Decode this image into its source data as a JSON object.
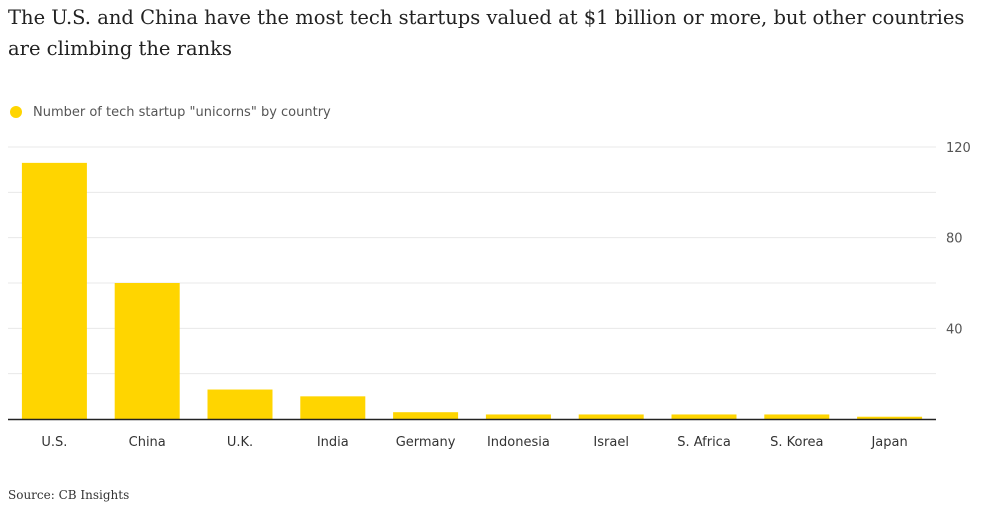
{
  "colors": {
    "bar": "#FFD500",
    "grid": "#e8e8e8",
    "axis": "#222222"
  },
  "chart_data": {
    "type": "bar",
    "title": "The U.S. and China have the most tech startups valued at $1 billion or more, but other countries are climbing the ranks",
    "legend": "Number of tech startup \"unicorns\" by country",
    "categories": [
      "U.S.",
      "China",
      "U.K.",
      "India",
      "Germany",
      "Indonesia",
      "Israel",
      "S. Africa",
      "S. Korea",
      "Japan"
    ],
    "values": [
      113,
      60,
      13,
      10,
      3,
      2,
      2,
      2,
      2,
      1
    ],
    "ylim": [
      0,
      120
    ],
    "yticks": [
      40,
      80,
      120
    ],
    "grid_lines": [
      20,
      40,
      60,
      80,
      100,
      120
    ],
    "yaxis_position": "right",
    "xlabel": "",
    "ylabel": "",
    "source": "Source: CB Insights"
  }
}
